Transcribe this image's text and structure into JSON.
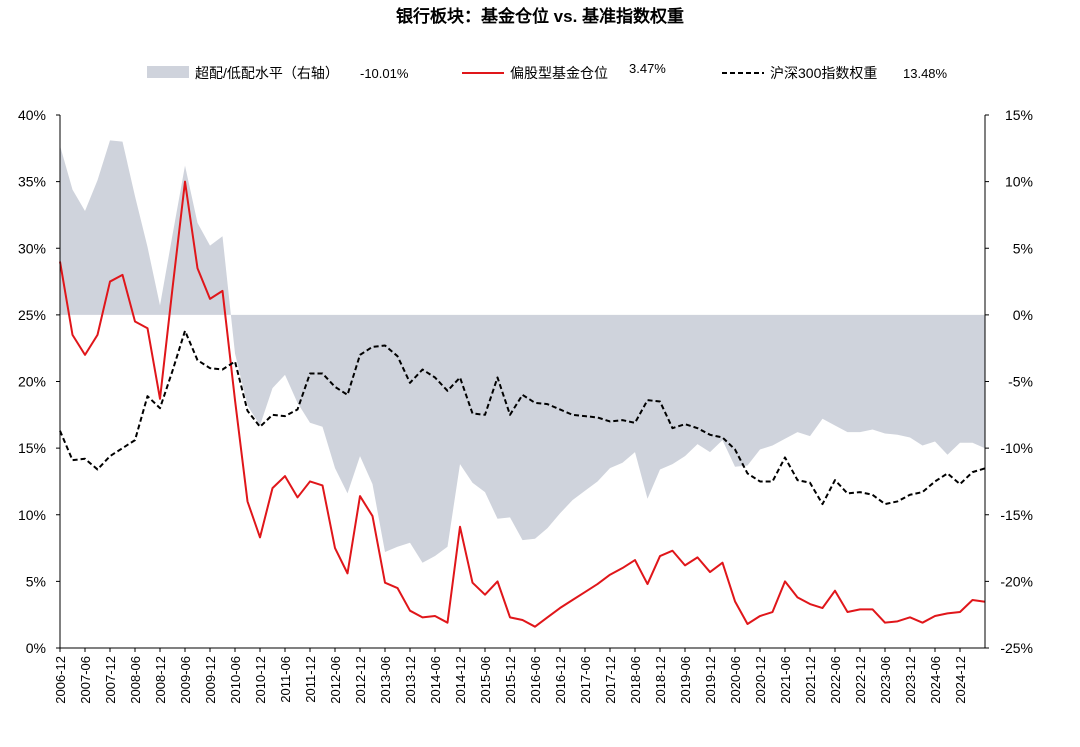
{
  "chart_data": {
    "type": "line",
    "title": "银行板块：基金仓位 vs. 基准指数权重",
    "legend": {
      "placement": "top",
      "items": [
        {
          "name": "超配/低配水平（右轴）",
          "value_label": "-10.01%",
          "style": "area",
          "color": "#cfd3dc"
        },
        {
          "name": "偏股型基金仓位",
          "value_label": "3.47%",
          "style": "solid",
          "color": "#e0161a"
        },
        {
          "name": "沪深300指数权重",
          "value_label": "13.48%",
          "style": "dashed",
          "color": "#000000"
        }
      ]
    },
    "left_axis": {
      "min": 0,
      "max": 40,
      "step": 5,
      "ticks": [
        "0%",
        "5%",
        "10%",
        "15%",
        "20%",
        "25%",
        "30%",
        "35%",
        "40%"
      ]
    },
    "right_axis": {
      "min": -25,
      "max": 15,
      "step": 5,
      "ticks": [
        "-25%",
        "-20%",
        "-15%",
        "-10%",
        "-5%",
        "0%",
        "5%",
        "10%",
        "15%"
      ]
    },
    "x_tick_labels": [
      "2006-12",
      "2007-06",
      "2007-12",
      "2008-06",
      "2008-12",
      "2009-06",
      "2009-12",
      "2010-06",
      "2010-12",
      "2011-06",
      "2011-12",
      "2012-06",
      "2012-12",
      "2013-06",
      "2013-12",
      "2014-06",
      "2014-12",
      "2015-06",
      "2015-12",
      "2016-06",
      "2016-12",
      "2017-06",
      "2017-12",
      "2018-06",
      "2018-12",
      "2019-06",
      "2019-12",
      "2020-06",
      "2020-12",
      "2021-06",
      "2021-12",
      "2022-06",
      "2022-12",
      "2023-06",
      "2023-12",
      "2024-06",
      "2024-12"
    ],
    "x_start": "2006-12",
    "x_step_months": 3,
    "series": [
      {
        "name": "偏股型基金仓位",
        "axis": "left",
        "values": [
          29.0,
          23.5,
          22.0,
          23.5,
          27.5,
          28.0,
          24.5,
          24.0,
          18.7,
          27.0,
          35.0,
          28.5,
          26.2,
          26.8,
          18.6,
          11.0,
          8.3,
          12.0,
          12.9,
          11.3,
          12.5,
          12.2,
          7.5,
          5.6,
          11.4,
          9.9,
          4.9,
          4.5,
          2.8,
          2.3,
          2.4,
          1.9,
          9.1,
          4.9,
          4.0,
          5.0,
          2.3,
          2.1,
          1.6,
          2.3,
          3.0,
          3.6,
          4.2,
          4.8,
          5.5,
          6.0,
          6.6,
          4.8,
          6.9,
          7.3,
          6.2,
          6.8,
          5.7,
          6.4,
          3.5,
          1.8,
          2.4,
          2.7,
          5.0,
          3.8,
          3.3,
          3.0,
          4.3,
          2.7,
          2.9,
          2.9,
          1.9,
          2.0,
          2.3,
          1.9,
          2.4,
          2.6,
          2.7,
          3.6,
          3.47
        ]
      },
      {
        "name": "沪深300指数权重",
        "axis": "left",
        "values": [
          16.3,
          14.1,
          14.2,
          13.4,
          14.4,
          15.0,
          15.6,
          18.9,
          18.0,
          20.8,
          23.8,
          21.6,
          21.0,
          20.9,
          21.5,
          17.8,
          16.6,
          17.5,
          17.4,
          17.9,
          20.6,
          20.6,
          19.6,
          19.0,
          22.0,
          22.6,
          22.7,
          21.9,
          19.9,
          20.9,
          20.3,
          19.3,
          20.3,
          17.6,
          17.5,
          20.3,
          17.5,
          19.0,
          18.4,
          18.3,
          17.9,
          17.5,
          17.4,
          17.3,
          17.0,
          17.1,
          16.9,
          18.6,
          18.5,
          16.5,
          16.8,
          16.5,
          16.0,
          15.8,
          14.9,
          13.1,
          12.5,
          12.5,
          14.3,
          12.6,
          12.4,
          10.8,
          12.6,
          11.6,
          11.7,
          11.5,
          10.8,
          11.0,
          11.5,
          11.7,
          12.5,
          13.1,
          12.3,
          13.2,
          13.48
        ]
      },
      {
        "name": "超配/低配水平（右轴）",
        "axis": "right",
        "values": [
          12.7,
          9.4,
          7.8,
          10.1,
          13.1,
          13.0,
          8.9,
          5.1,
          0.7,
          6.0,
          11.2,
          6.9,
          5.2,
          5.9,
          -2.9,
          -6.8,
          -8.3,
          -5.5,
          -4.5,
          -6.6,
          -8.1,
          -8.4,
          -11.5,
          -13.4,
          -10.6,
          -12.7,
          -17.8,
          -17.4,
          -17.1,
          -18.6,
          -18.1,
          -17.4,
          -11.2,
          -12.6,
          -13.3,
          -15.3,
          -15.2,
          -16.9,
          -16.8,
          -16.0,
          -14.9,
          -13.9,
          -13.2,
          -12.5,
          -11.5,
          -11.1,
          -10.3,
          -13.8,
          -11.6,
          -11.2,
          -10.6,
          -9.7,
          -10.3,
          -9.4,
          -11.4,
          -11.3,
          -10.1,
          -9.8,
          -9.3,
          -8.8,
          -9.1,
          -7.8,
          -8.3,
          -8.8,
          -8.8,
          -8.6,
          -8.9,
          -9.0,
          -9.2,
          -9.8,
          -9.5,
          -10.5,
          -9.6,
          -9.6,
          -10.01
        ]
      }
    ]
  }
}
